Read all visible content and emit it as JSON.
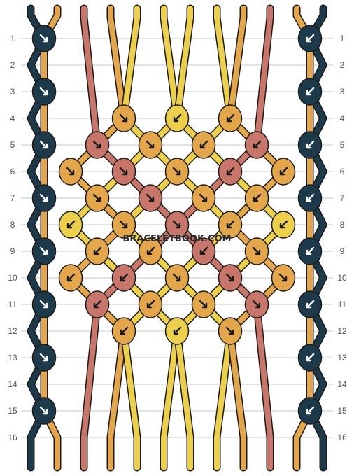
{
  "watermark": "BRACELETBOOK.COM",
  "strand_letters": [
    "C",
    "B",
    "A",
    "B",
    "D",
    "D",
    "D",
    "D",
    "B",
    "A",
    "B",
    "C"
  ],
  "row_numbers": [
    "1",
    "2",
    "3",
    "4",
    "5",
    "6",
    "7",
    "8",
    "9",
    "10",
    "11",
    "12",
    "13",
    "14",
    "15",
    "16"
  ],
  "colors": {
    "A": "#c8756a",
    "B": "#e3a64a",
    "C": "#1d3a4a",
    "D": "#eccf4b",
    "grid": "#c9c9c9",
    "knot_outline": "#1a1a1a",
    "arrow_on_light": "#1a1a1a",
    "arrow_on_dark": "#ffffff"
  },
  "knots": [
    {
      "row": 1,
      "pos": 0,
      "color": "C",
      "dir": "right"
    },
    {
      "row": 1,
      "pos": 10,
      "color": "C",
      "dir": "left"
    },
    {
      "row": 3,
      "pos": 0,
      "color": "C",
      "dir": "right"
    },
    {
      "row": 3,
      "pos": 10,
      "color": "C",
      "dir": "left"
    },
    {
      "row": 4,
      "pos": 3,
      "color": "B",
      "dir": "right"
    },
    {
      "row": 4,
      "pos": 5,
      "color": "D",
      "dir": "left"
    },
    {
      "row": 4,
      "pos": 7,
      "color": "B",
      "dir": "left"
    },
    {
      "row": 5,
      "pos": 0,
      "color": "C",
      "dir": "right"
    },
    {
      "row": 5,
      "pos": 2,
      "color": "A",
      "dir": "right"
    },
    {
      "row": 5,
      "pos": 4,
      "color": "B",
      "dir": "right"
    },
    {
      "row": 5,
      "pos": 6,
      "color": "B",
      "dir": "left"
    },
    {
      "row": 5,
      "pos": 8,
      "color": "A",
      "dir": "left"
    },
    {
      "row": 5,
      "pos": 10,
      "color": "C",
      "dir": "left"
    },
    {
      "row": 6,
      "pos": 1,
      "color": "B",
      "dir": "right"
    },
    {
      "row": 6,
      "pos": 3,
      "color": "A",
      "dir": "right"
    },
    {
      "row": 6,
      "pos": 5,
      "color": "B",
      "dir": "right"
    },
    {
      "row": 6,
      "pos": 7,
      "color": "A",
      "dir": "left"
    },
    {
      "row": 6,
      "pos": 9,
      "color": "B",
      "dir": "left"
    },
    {
      "row": 7,
      "pos": 0,
      "color": "C",
      "dir": "right"
    },
    {
      "row": 7,
      "pos": 2,
      "color": "B",
      "dir": "right"
    },
    {
      "row": 7,
      "pos": 4,
      "color": "A",
      "dir": "right"
    },
    {
      "row": 7,
      "pos": 6,
      "color": "B",
      "dir": "right"
    },
    {
      "row": 7,
      "pos": 8,
      "color": "B",
      "dir": "left"
    },
    {
      "row": 7,
      "pos": 10,
      "color": "C",
      "dir": "left"
    },
    {
      "row": 8,
      "pos": 1,
      "color": "D",
      "dir": "left"
    },
    {
      "row": 8,
      "pos": 3,
      "color": "B",
      "dir": "right"
    },
    {
      "row": 8,
      "pos": 5,
      "color": "A",
      "dir": "right"
    },
    {
      "row": 8,
      "pos": 7,
      "color": "B",
      "dir": "left"
    },
    {
      "row": 8,
      "pos": 9,
      "color": "D",
      "dir": "left"
    },
    {
      "row": 9,
      "pos": 0,
      "color": "C",
      "dir": "right"
    },
    {
      "row": 9,
      "pos": 2,
      "color": "B",
      "dir": "left"
    },
    {
      "row": 9,
      "pos": 4,
      "color": "B",
      "dir": "left"
    },
    {
      "row": 9,
      "pos": 6,
      "color": "A",
      "dir": "left"
    },
    {
      "row": 9,
      "pos": 8,
      "color": "B",
      "dir": "right"
    },
    {
      "row": 9,
      "pos": 10,
      "color": "C",
      "dir": "left"
    },
    {
      "row": 10,
      "pos": 1,
      "color": "B",
      "dir": "left"
    },
    {
      "row": 10,
      "pos": 3,
      "color": "A",
      "dir": "left"
    },
    {
      "row": 10,
      "pos": 5,
      "color": "B",
      "dir": "right"
    },
    {
      "row": 10,
      "pos": 7,
      "color": "A",
      "dir": "right"
    },
    {
      "row": 10,
      "pos": 9,
      "color": "B",
      "dir": "right"
    },
    {
      "row": 11,
      "pos": 0,
      "color": "C",
      "dir": "right"
    },
    {
      "row": 11,
      "pos": 2,
      "color": "A",
      "dir": "left"
    },
    {
      "row": 11,
      "pos": 4,
      "color": "B",
      "dir": "left"
    },
    {
      "row": 11,
      "pos": 6,
      "color": "B",
      "dir": "right"
    },
    {
      "row": 11,
      "pos": 8,
      "color": "A",
      "dir": "right"
    },
    {
      "row": 11,
      "pos": 10,
      "color": "C",
      "dir": "left"
    },
    {
      "row": 12,
      "pos": 3,
      "color": "B",
      "dir": "left"
    },
    {
      "row": 12,
      "pos": 5,
      "color": "D",
      "dir": "left"
    },
    {
      "row": 12,
      "pos": 7,
      "color": "B",
      "dir": "right"
    },
    {
      "row": 13,
      "pos": 0,
      "color": "C",
      "dir": "right"
    },
    {
      "row": 13,
      "pos": 10,
      "color": "C",
      "dir": "left"
    },
    {
      "row": 15,
      "pos": 0,
      "color": "C",
      "dir": "right"
    },
    {
      "row": 15,
      "pos": 10,
      "color": "C",
      "dir": "left"
    }
  ]
}
